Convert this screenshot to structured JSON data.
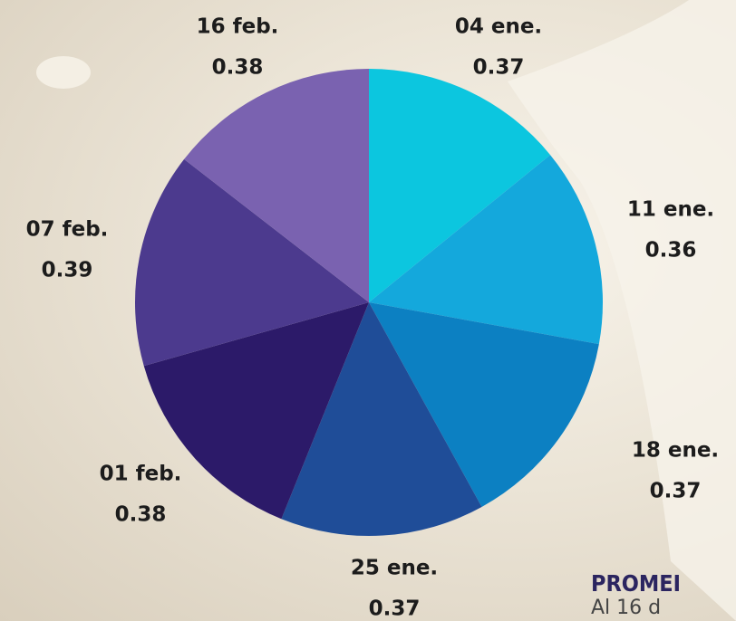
{
  "chart_data": {
    "type": "pie",
    "categories": [
      "04 ene.",
      "11 ene.",
      "18 ene.",
      "25 ene.",
      "01 feb.",
      "07 feb.",
      "16 feb."
    ],
    "values": [
      0.37,
      0.36,
      0.37,
      0.37,
      0.38,
      0.39,
      0.38
    ],
    "colors": [
      "#0cc6df",
      "#14a8dc",
      "#0c80c2",
      "#1f4d98",
      "#2c1a69",
      "#4c3a8e",
      "#7a62b0"
    ]
  },
  "footer": {
    "title": "PROMEI",
    "subtitle": "Al 16 d"
  }
}
